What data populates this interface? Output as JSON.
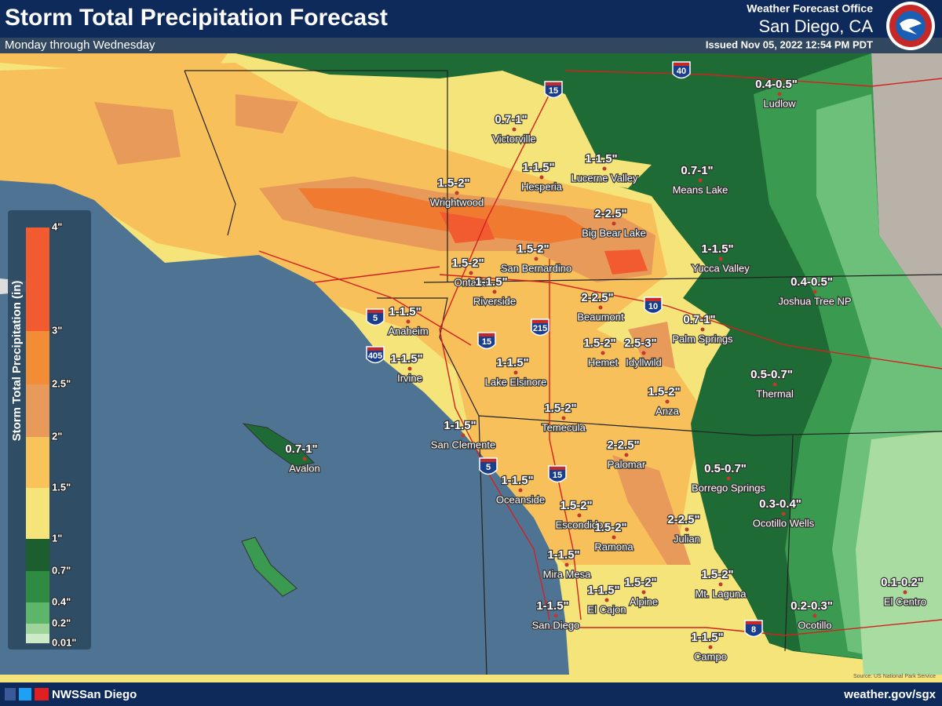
{
  "header": {
    "title": "Storm Total Precipitation Forecast",
    "subtitle": "Monday through Wednesday",
    "office": "Weather Forecast Office",
    "location": "San Diego, CA",
    "issued": "Issued Nov 05, 2022 12:54 PM PDT"
  },
  "legend": {
    "title": "Storm Total Precipitation (in)",
    "labels": [
      "4\"",
      "3\"",
      "2.5\"",
      "2\"",
      "1.5\"",
      "1\"",
      "0.7\"",
      "0.4\"",
      "0.2\"",
      "0.01\""
    ]
  },
  "places": [
    {
      "amount": "0.7-1\"",
      "name": "Victorville"
    },
    {
      "amount": "1-1.5\"",
      "name": "Hesperia"
    },
    {
      "amount": "1-1.5\"",
      "name": "Lucerne Valley"
    },
    {
      "amount": "0.7-1\"",
      "name": "Means Lake"
    },
    {
      "amount": "0.4-0.5\"",
      "name": "Ludlow"
    },
    {
      "amount": "1.5-2\"",
      "name": "Wrightwood"
    },
    {
      "amount": "2-2.5\"",
      "name": "Big Bear Lake"
    },
    {
      "amount": "1-1.5\"",
      "name": "Yucca Valley"
    },
    {
      "amount": "1.5-2\"",
      "name": "Ontario"
    },
    {
      "amount": "1.5-2\"",
      "name": "San Bernardino"
    },
    {
      "amount": "1-1.5\"",
      "name": "Riverside"
    },
    {
      "amount": "0.4-0.5\"",
      "name": "Joshua Tree NP"
    },
    {
      "amount": "2-2.5\"",
      "name": "Beaumont"
    },
    {
      "amount": "0.7-1\"",
      "name": "Palm Springs"
    },
    {
      "amount": "1-1.5\"",
      "name": "Anaheim"
    },
    {
      "amount": "1.5-2\"",
      "name": "Hemet"
    },
    {
      "amount": "2.5-3\"",
      "name": "Idyllwild"
    },
    {
      "amount": "1-1.5\"",
      "name": "Irvine"
    },
    {
      "amount": "1-1.5\"",
      "name": "Lake Elsinore"
    },
    {
      "amount": "0.5-0.7\"",
      "name": "Thermal"
    },
    {
      "amount": "1.5-2\"",
      "name": "Anza"
    },
    {
      "amount": "1.5-2\"",
      "name": "Temecula"
    },
    {
      "amount": "1-1.5\"",
      "name": "San Clemente"
    },
    {
      "amount": "0.7-1\"",
      "name": "Avalon"
    },
    {
      "amount": "2-2.5\"",
      "name": "Palomar"
    },
    {
      "amount": "0.5-0.7\"",
      "name": "Borrego Springs"
    },
    {
      "amount": "1-1.5\"",
      "name": "Oceanside"
    },
    {
      "amount": "0.3-0.4\"",
      "name": "Ocotillo Wells"
    },
    {
      "amount": "1.5-2\"",
      "name": "Escondido"
    },
    {
      "amount": "1.5-2\"",
      "name": "Ramona"
    },
    {
      "amount": "2-2.5\"",
      "name": "Julian"
    },
    {
      "amount": "1-1.5\"",
      "name": "Mira Mesa"
    },
    {
      "amount": "1.5-2\"",
      "name": "Mt. Laguna"
    },
    {
      "amount": "1-1.5\"",
      "name": "El Cajon"
    },
    {
      "amount": "1.5-2\"",
      "name": "Alpine"
    },
    {
      "amount": "0.1-0.2\"",
      "name": "El Centro"
    },
    {
      "amount": "1-1.5\"",
      "name": "San Diego"
    },
    {
      "amount": "0.2-0.3\"",
      "name": "Ocotillo"
    },
    {
      "amount": "1-1.5\"",
      "name": "Campo"
    }
  ],
  "highways": [
    "15",
    "40",
    "5",
    "405",
    "10",
    "215",
    "15",
    "5",
    "15",
    "8"
  ],
  "footer": {
    "handle": "NWSSan Diego",
    "website": "weather.gov/sgx",
    "source": "Source: US National Park Service"
  }
}
